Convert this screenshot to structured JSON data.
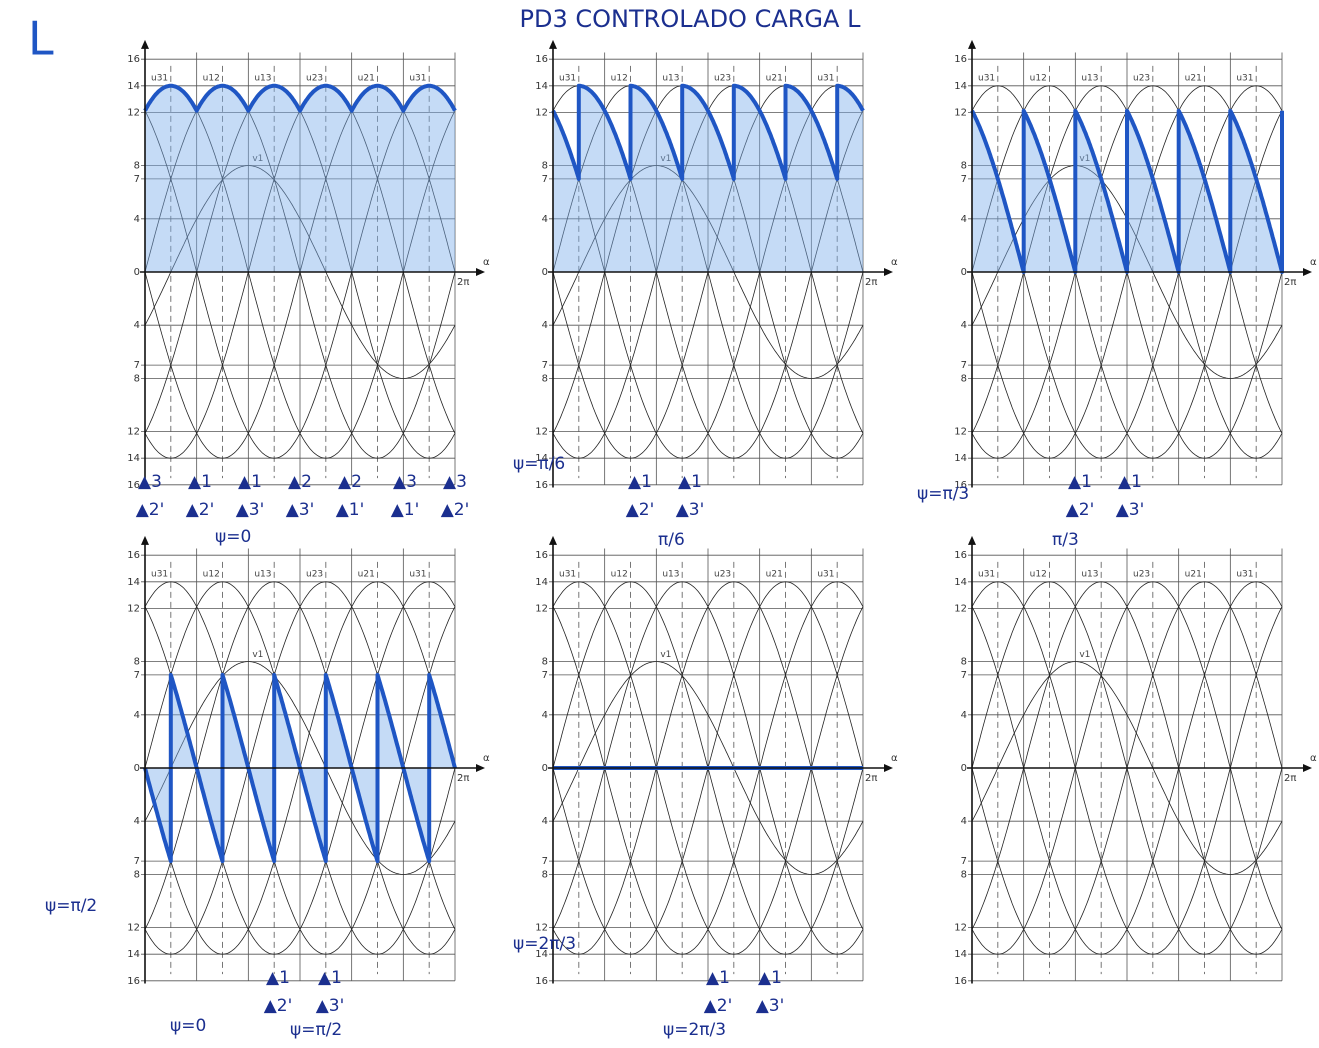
{
  "header": {
    "corner": "L",
    "title": "PD3 CONTROLADO CARGA L"
  },
  "axis": {
    "yticks": [
      16,
      14,
      12,
      8,
      7,
      4,
      0,
      {
        "value": -4,
        "label": "4"
      },
      {
        "value": -7,
        "label": "7"
      },
      {
        "value": -8,
        "label": "8"
      },
      {
        "value": -12,
        "label": "12"
      },
      {
        "value": -14,
        "label": "14"
      },
      {
        "value": -16,
        "label": "16"
      }
    ],
    "x_end": "2π",
    "x_name": "α",
    "curve_labels": [
      "u31",
      "u12",
      "u13",
      "u23",
      "u21",
      "u31"
    ],
    "phase_label": "v1"
  },
  "panels": [
    {
      "thyristors_top": [
        "▲3",
        "▲1",
        "▲1",
        "▲2",
        "▲2",
        "▲3",
        "▲3"
      ],
      "thyristors_bottom": [
        "▲2'",
        "▲2'",
        "▲3'",
        "▲3'",
        "▲1'",
        "▲1'",
        "▲2'"
      ],
      "notes": [
        "ψ=0"
      ]
    },
    {
      "thyristors_top": [
        "▲1",
        "▲1"
      ],
      "thyristors_bottom": [
        "▲2'",
        "▲3'"
      ],
      "notes": [
        "ψ=π/6",
        "π/6"
      ]
    },
    {
      "thyristors_top": [
        "▲1",
        "▲1"
      ],
      "thyristors_bottom": [
        "▲2'",
        "▲3'"
      ],
      "notes": [
        "ψ=π/3",
        "π/3"
      ]
    },
    {
      "thyristors_top": [
        "▲1",
        "▲1"
      ],
      "thyristors_bottom": [
        "▲2'",
        "▲3'"
      ],
      "notes": [
        "ψ=π/2",
        "ψ=0",
        "ψ=π/2"
      ]
    },
    {
      "thyristors_top": [
        "▲1",
        "▲1"
      ],
      "thyristors_bottom": [
        "▲2'",
        "▲3'"
      ],
      "notes": [
        "ψ=2π/3",
        "ψ=2π/3"
      ]
    },
    {
      "notes": []
    }
  ]
}
